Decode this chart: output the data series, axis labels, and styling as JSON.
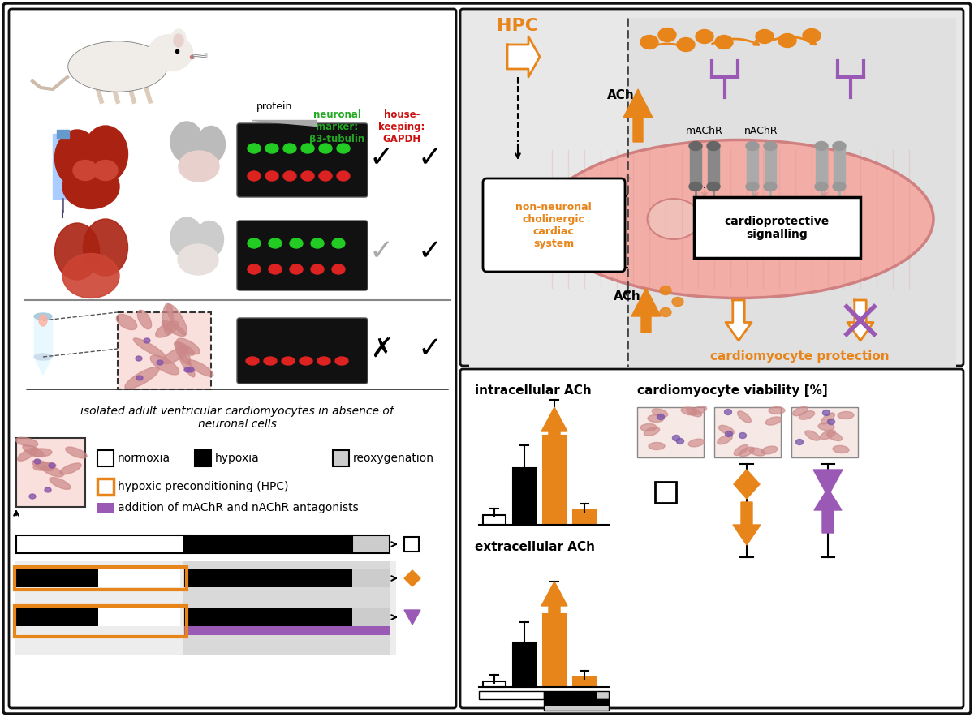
{
  "bg_color": "#ffffff",
  "border_color": "#222222",
  "orange_color": "#E8851A",
  "purple_color": "#9B59B6",
  "pink_cell_color": "#F4A8A0",
  "gray_bg": "#DDDDDD",
  "light_gray": "#EEEEEE",
  "dark_gray": "#AAAAAA",
  "green_dot_color": "#44CC44",
  "red_dot_color": "#DD2222",
  "left_panel_title": "isolated adult ventricular cardiomyocytes in absence of\nneuronal cells",
  "legend_items": [
    "normoxia",
    "hypoxia",
    "reoxygenation",
    "hypoxic preconditioning (HPC)",
    "addition of mAChR and nAChR antagonists"
  ],
  "protein_label": "protein",
  "neuronal_marker_label": "neuronal\nmarker:\nβ3-tubulin",
  "housekeeping_label": "house-\nkeeping:\nGAPDH"
}
